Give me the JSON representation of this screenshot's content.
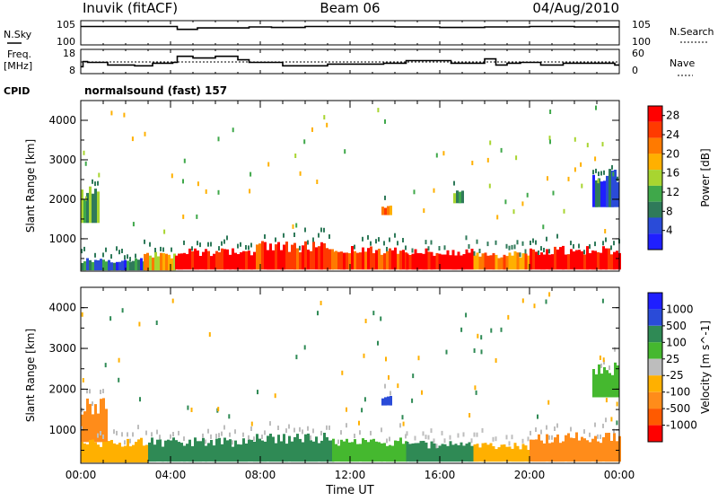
{
  "header": {
    "station": "Inuvik (fitACF)",
    "beam": "Beam 06",
    "date": "04/Aug/2010"
  },
  "left_labels": {
    "nsky": "N.Sky",
    "freq_line1": "Freq.",
    "freq_line2": "[MHz]",
    "cpid": "CPID"
  },
  "right_labels": {
    "nsearch": "N.Search",
    "nave": "Nave"
  },
  "cpid_text": "normalsound (fast) 157",
  "colors": {
    "white": "#ffffff",
    "power_scale": [
      "#1f1fff",
      "#2a4bd8",
      "#2f7a5a",
      "#3fa84a",
      "#a8d530",
      "#ffb000",
      "#ff7a00",
      "#ff3a00",
      "#ff0000"
    ],
    "velocity_scale": [
      "#ff0000",
      "#ff5a00",
      "#ff8c1a",
      "#ffb000",
      "#bdbdbd",
      "#45b82f",
      "#2f8a55",
      "#2a4bd8",
      "#1f1fff"
    ]
  },
  "chart_data": [
    {
      "type": "line",
      "name": "N.Sky / N.Search",
      "yticks": [
        "10^5",
        "10^0"
      ],
      "right_yticks": [
        "10^5",
        "10^0"
      ],
      "x": [
        0,
        2,
        4,
        4.3,
        5.2,
        7.5,
        8.5,
        10,
        12,
        14,
        16,
        18,
        20,
        22,
        24
      ],
      "values": [
        3.8,
        3.8,
        3.8,
        3.2,
        3.5,
        3.7,
        3.6,
        3.8,
        3.8,
        3.7,
        3.6,
        3.7,
        3.8,
        3.7,
        3.7
      ]
    },
    {
      "type": "line",
      "name": "Freq / Nave",
      "yticks": [
        "18",
        "8"
      ],
      "right_yticks": [
        "60",
        "0"
      ],
      "x": [
        0,
        0.1,
        0.3,
        1.2,
        2.4,
        3.2,
        4.1,
        4.3,
        5.0,
        6.0,
        7.0,
        7.5,
        9.0,
        11.0,
        13.5,
        14.5,
        16.5,
        17.3,
        18.0,
        18.5,
        19.0,
        19.6,
        20.5,
        21.5,
        23.8,
        24
      ],
      "values": [
        10.0,
        13.0,
        12.5,
        11.0,
        10.5,
        12.0,
        12.5,
        16.0,
        15.0,
        16.0,
        14.0,
        12.5,
        10.5,
        11.5,
        12.0,
        13.5,
        12.0,
        12.0,
        14.5,
        11.0,
        12.0,
        12.5,
        11.0,
        12.0,
        11.0,
        11.0
      ]
    },
    {
      "type": "heatmap",
      "title": "Power [dB]",
      "xlabel": "Time UT",
      "ylabel": "Slant Range [km]",
      "xticks": [
        "00:00",
        "04:00",
        "08:00",
        "12:00",
        "16:00",
        "20:00",
        "00:00"
      ],
      "yticks": [
        1000,
        2000,
        3000,
        4000
      ],
      "ylim": [
        180,
        4500
      ],
      "colorbar_ticks": [
        4,
        8,
        12,
        16,
        20,
        24,
        28
      ],
      "colorbar_range": [
        0,
        30
      ],
      "bands": [
        {
          "x0": 0,
          "x1": 2.8,
          "y0": 200,
          "y1": 450,
          "value": 8
        },
        {
          "x0": 2.8,
          "x1": 4.2,
          "y0": 200,
          "y1": 600,
          "value": 18
        },
        {
          "x0": 4.2,
          "x1": 7.8,
          "y0": 220,
          "y1": 650,
          "value": 30
        },
        {
          "x0": 7.8,
          "x1": 11.2,
          "y0": 220,
          "y1": 800,
          "value": 26
        },
        {
          "x0": 11.2,
          "x1": 14.5,
          "y0": 220,
          "y1": 700,
          "value": 26
        },
        {
          "x0": 14.5,
          "x1": 17.5,
          "y0": 220,
          "y1": 650,
          "value": 30
        },
        {
          "x0": 17.5,
          "x1": 20.0,
          "y0": 220,
          "y1": 600,
          "value": 22
        },
        {
          "x0": 20.0,
          "x1": 24.0,
          "y0": 220,
          "y1": 700,
          "value": 30
        },
        {
          "x0": 0,
          "x1": 0.8,
          "y0": 1400,
          "y1": 2200,
          "value": 12
        },
        {
          "x0": 22.8,
          "x1": 24.0,
          "y0": 1800,
          "y1": 2600,
          "value": 8
        },
        {
          "x0": 13.4,
          "x1": 13.8,
          "y0": 1600,
          "y1": 1800,
          "value": 20
        },
        {
          "x0": 16.6,
          "x1": 17.0,
          "y0": 1900,
          "y1": 2200,
          "value": 12
        }
      ]
    },
    {
      "type": "heatmap",
      "title": "Velocity [m s^-1]",
      "xlabel": "Time UT",
      "ylabel": "Slant Range [km]",
      "xticks": [
        "00:00",
        "04:00",
        "08:00",
        "12:00",
        "16:00",
        "20:00",
        "00:00"
      ],
      "yticks": [
        1000,
        2000,
        3000,
        4000
      ],
      "ylim": [
        180,
        4500
      ],
      "colorbar_ticks": [
        "1000",
        "500",
        "100",
        "25",
        "-25",
        "-100",
        "-500",
        "-1000"
      ],
      "bands": [
        {
          "x0": 0,
          "x1": 1.2,
          "y0": 700,
          "y1": 1600,
          "value": -500
        },
        {
          "x0": 0,
          "x1": 3.0,
          "y0": 200,
          "y1": 700,
          "value": -100
        },
        {
          "x0": 3.0,
          "x1": 7.8,
          "y0": 220,
          "y1": 700,
          "value": 100
        },
        {
          "x0": 7.8,
          "x1": 11.2,
          "y0": 220,
          "y1": 800,
          "value": 100
        },
        {
          "x0": 11.2,
          "x1": 14.5,
          "y0": 220,
          "y1": 700,
          "value": 25
        },
        {
          "x0": 14.5,
          "x1": 17.5,
          "y0": 220,
          "y1": 650,
          "value": 100
        },
        {
          "x0": 17.5,
          "x1": 20.0,
          "y0": 220,
          "y1": 600,
          "value": -100
        },
        {
          "x0": 20.0,
          "x1": 24.0,
          "y0": 220,
          "y1": 800,
          "value": -500
        },
        {
          "x0": 22.8,
          "x1": 24.0,
          "y0": 1800,
          "y1": 2500,
          "value": 25
        },
        {
          "x0": 13.4,
          "x1": 13.8,
          "y0": 1600,
          "y1": 1800,
          "value": 500
        }
      ]
    }
  ],
  "axis_title": "Time UT"
}
